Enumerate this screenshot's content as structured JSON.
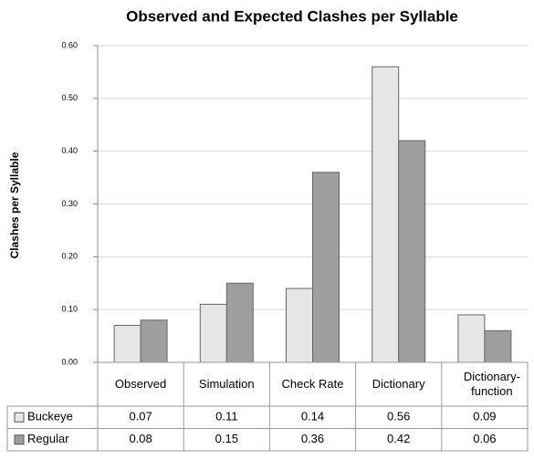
{
  "chart_data": {
    "type": "bar",
    "title": "Observed and Expected Clashes per Syllable",
    "y_label": "Clashes per Syllable",
    "categories": [
      "Observed",
      "Simulation",
      "Check Rate",
      "Dictionary",
      "Dictionary-function"
    ],
    "series": [
      {
        "name": "Buckeye",
        "color": "#e6e6e6",
        "values": [
          0.07,
          0.11,
          0.14,
          0.56,
          0.09
        ]
      },
      {
        "name": "Regular",
        "color": "#9e9e9e",
        "values": [
          0.08,
          0.15,
          0.36,
          0.42,
          0.06
        ]
      }
    ],
    "ylim": [
      0,
      0.6
    ],
    "yticks": [
      {
        "value": 0,
        "label": "0.00"
      },
      {
        "value": 0.1,
        "label": "0.10"
      },
      {
        "value": 0.2,
        "label": "0.20"
      },
      {
        "value": 0.3,
        "label": "0.30"
      },
      {
        "value": 0.4,
        "label": "0.40"
      },
      {
        "value": 0.5,
        "label": "0.50"
      },
      {
        "value": 0.6,
        "label": "0.60"
      }
    ],
    "grid": true
  }
}
